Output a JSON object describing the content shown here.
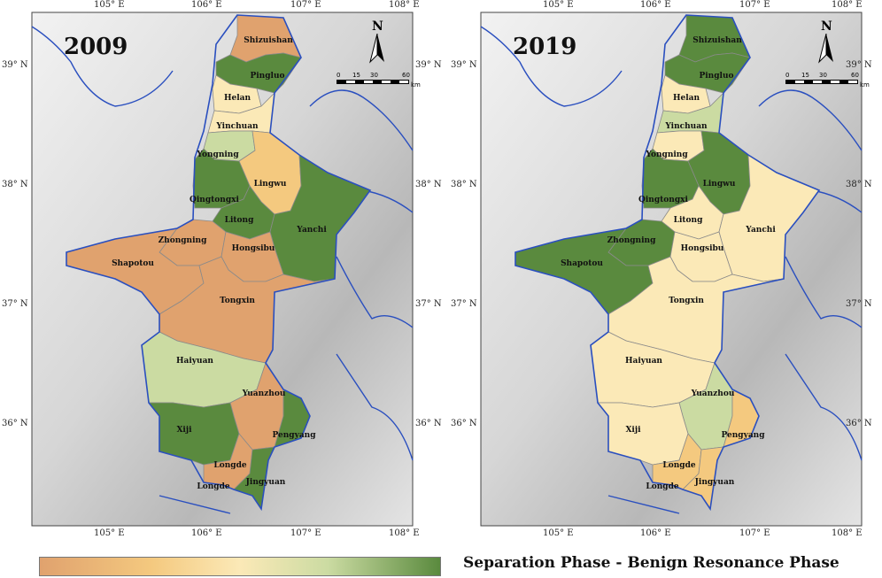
{
  "colors": {
    "separation": "#e0a26e",
    "pale_orange": "#f4c97f",
    "pale_yellow": "#fbe9b7",
    "pale_green": "#cbdba2",
    "benign": "#5a8a3e",
    "border_blue": "#2a4fbf",
    "district_line": "#8a8a8a"
  },
  "axes": {
    "lon_ticks": [
      "105° E",
      "106° E",
      "107° E",
      "108° E"
    ],
    "lat_ticks": [
      "39° N",
      "38° N",
      "37° N",
      "36° N"
    ]
  },
  "north_arrow": {
    "label": "N"
  },
  "scale_bar": {
    "labels": [
      "0",
      "15",
      "30",
      "60"
    ],
    "unit": "km"
  },
  "maps": [
    {
      "year": "2009",
      "regions": {
        "Shizuishan": "separation",
        "Pingluo": "benign",
        "Helan": "pale_yellow",
        "Yinchuan": "pale_yellow",
        "Yongning": "pale_green",
        "Lingwu": "pale_orange",
        "Qingtongxi": "benign",
        "Litong": "benign",
        "Yanchi": "benign",
        "Zhongning": "separation",
        "Hongsibu": "separation",
        "Shapotou": "separation",
        "Tongxin": "separation",
        "Haiyuan": "pale_green",
        "Yuanzhou": "separation",
        "Xiji": "benign",
        "Pengyang": "benign",
        "Longde": "separation",
        "Jingyuan": "benign"
      },
      "labels": [
        "Shizuishan",
        "Pingluo",
        "Helan",
        "Yinchuan",
        "Yongning",
        "Lingwu",
        "Qingtongxi",
        "Litong",
        "Yanchi",
        "Zhongning",
        "Hongsibu",
        "Shapotou",
        "Tongxin",
        "Haiyuan",
        "Yuanzhou",
        "Xiji",
        "Pengyang",
        "Longde",
        "Jingyuan",
        "Longde"
      ]
    },
    {
      "year": "2019",
      "regions": {
        "Shizuishan": "benign",
        "Pingluo": "benign",
        "Helan": "pale_yellow",
        "Yinchuan": "pale_green",
        "Yongning": "pale_yellow",
        "Lingwu": "benign",
        "Qingtongxi": "benign",
        "Litong": "pale_yellow",
        "Yanchi": "pale_yellow",
        "Zhongning": "benign",
        "Hongsibu": "pale_yellow",
        "Shapotou": "benign",
        "Tongxin": "pale_yellow",
        "Haiyuan": "pale_yellow",
        "Yuanzhou": "pale_green",
        "Xiji": "pale_yellow",
        "Pengyang": "pale_orange",
        "Longde": "pale_orange",
        "Jingyuan": "pale_orange"
      },
      "labels": [
        "Shizuishan",
        "Pingluo",
        "Helan",
        "Yinchuan",
        "Yongning",
        "Lingwu",
        "Qingtongxi",
        "Litong",
        "Yanchi",
        "Zhongning",
        "Hongsibu",
        "Shapotou",
        "Tongxin",
        "Haiyuan",
        "Yuanzhou",
        "Xiji",
        "Pengyang",
        "Longde",
        "Jingyuan",
        "Longde"
      ]
    }
  ],
  "legend": {
    "label": "Separation Phase - Benign Resonance Phase"
  }
}
